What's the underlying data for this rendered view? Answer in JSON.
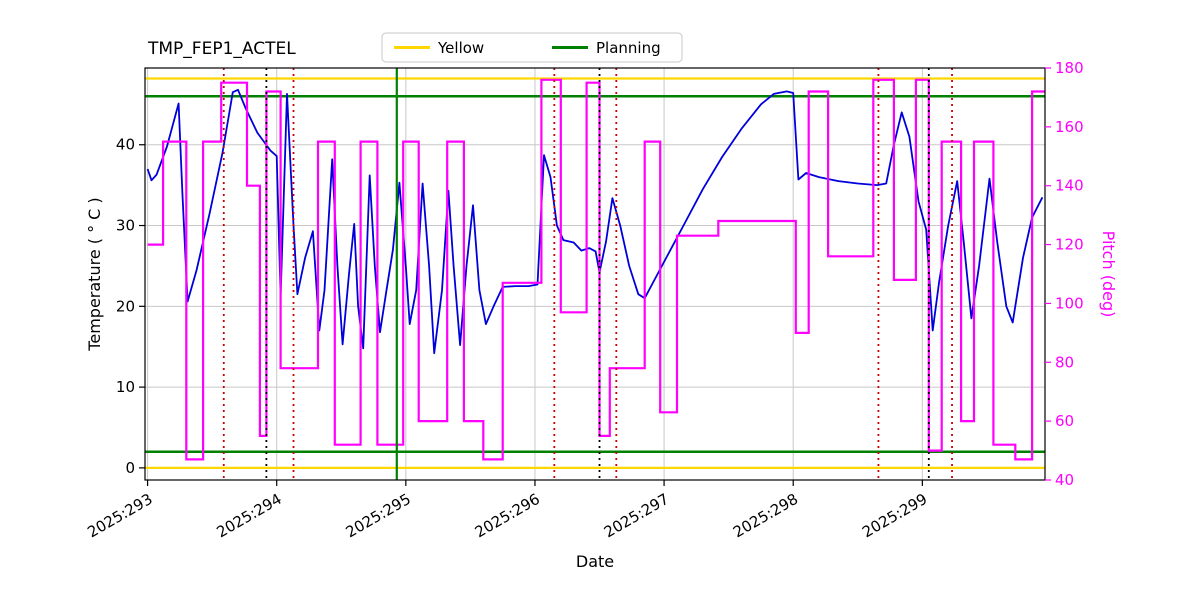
{
  "figure": {
    "title": "TMP_FEP1_ACTEL",
    "xlabel": "Date",
    "ylabel_left": "Temperature ( ° C )",
    "ylabel_right": "Pitch (deg)"
  },
  "legend": {
    "entries": [
      {
        "label": "Yellow",
        "color": "#ffd700"
      },
      {
        "label": "Planning",
        "color": "#008000"
      }
    ]
  },
  "chart_data": {
    "type": "line",
    "title": "TMP_FEP1_ACTEL",
    "xlabel": "Date",
    "ylabel_left": "Temperature ( ° C )",
    "ylabel_right": "Pitch (deg)",
    "xlim": [
      292.98,
      299.95
    ],
    "temp_ylim": [
      -1.5,
      49.5
    ],
    "pitch_ylim": [
      40,
      180
    ],
    "grid": true,
    "legend_position": "top-center",
    "x_ticks": {
      "values": [
        293,
        294,
        295,
        296,
        297,
        298,
        299
      ],
      "labels": [
        "2025:293",
        "2025:294",
        "2025:295",
        "2025:296",
        "2025:297",
        "2025:298",
        "2025:299"
      ]
    },
    "temp_ticks": [
      0,
      10,
      20,
      30,
      40
    ],
    "pitch_ticks": [
      40,
      60,
      80,
      100,
      120,
      140,
      160,
      180
    ],
    "style": {
      "grid_color": "#c8c8c8",
      "spine_color": "#000000",
      "background": "#ffffff"
    },
    "series": {
      "temperature": {
        "name": "Temperature",
        "axis": "left",
        "color": "#0000dd",
        "points": [
          [
            293.0,
            37.0
          ],
          [
            293.03,
            35.6
          ],
          [
            293.07,
            36.3
          ],
          [
            293.15,
            39.8
          ],
          [
            293.24,
            45.1
          ],
          [
            293.27,
            34.0
          ],
          [
            293.31,
            20.6
          ],
          [
            293.38,
            24.5
          ],
          [
            293.48,
            31.5
          ],
          [
            293.58,
            39.0
          ],
          [
            293.66,
            46.5
          ],
          [
            293.7,
            46.8
          ],
          [
            293.76,
            44.5
          ],
          [
            293.85,
            41.5
          ],
          [
            293.95,
            39.3
          ],
          [
            294.0,
            38.6
          ],
          [
            294.03,
            21.2
          ],
          [
            294.08,
            46.3
          ],
          [
            294.13,
            30.0
          ],
          [
            294.16,
            21.5
          ],
          [
            294.22,
            26.0
          ],
          [
            294.28,
            29.3
          ],
          [
            294.33,
            17.0
          ],
          [
            294.37,
            22.0
          ],
          [
            294.43,
            38.2
          ],
          [
            294.47,
            25.0
          ],
          [
            294.51,
            15.3
          ],
          [
            294.56,
            24.0
          ],
          [
            294.6,
            30.2
          ],
          [
            294.63,
            20.0
          ],
          [
            294.67,
            14.8
          ],
          [
            294.72,
            36.2
          ],
          [
            294.76,
            25.0
          ],
          [
            294.8,
            16.8
          ],
          [
            294.85,
            22.0
          ],
          [
            294.9,
            27.0
          ],
          [
            294.95,
            35.3
          ],
          [
            295.0,
            25.0
          ],
          [
            295.03,
            17.8
          ],
          [
            295.08,
            22.0
          ],
          [
            295.13,
            35.2
          ],
          [
            295.18,
            25.0
          ],
          [
            295.22,
            14.2
          ],
          [
            295.28,
            22.0
          ],
          [
            295.33,
            34.3
          ],
          [
            295.37,
            25.0
          ],
          [
            295.42,
            15.2
          ],
          [
            295.47,
            25.0
          ],
          [
            295.52,
            32.5
          ],
          [
            295.57,
            22.0
          ],
          [
            295.62,
            17.8
          ],
          [
            295.68,
            20.0
          ],
          [
            295.75,
            22.4
          ],
          [
            295.85,
            22.5
          ],
          [
            295.95,
            22.5
          ],
          [
            296.02,
            22.7
          ],
          [
            296.07,
            38.7
          ],
          [
            296.12,
            36.0
          ],
          [
            296.17,
            30.0
          ],
          [
            296.22,
            28.2
          ],
          [
            296.3,
            27.9
          ],
          [
            296.36,
            26.9
          ],
          [
            296.42,
            27.2
          ],
          [
            296.47,
            26.8
          ],
          [
            296.5,
            24.2
          ],
          [
            296.55,
            28.0
          ],
          [
            296.6,
            33.4
          ],
          [
            296.66,
            30.0
          ],
          [
            296.73,
            25.0
          ],
          [
            296.8,
            21.5
          ],
          [
            296.85,
            21.0
          ],
          [
            296.95,
            24.0
          ],
          [
            297.05,
            27.0
          ],
          [
            297.15,
            30.0
          ],
          [
            297.3,
            34.5
          ],
          [
            297.45,
            38.5
          ],
          [
            297.6,
            42.0
          ],
          [
            297.75,
            45.0
          ],
          [
            297.85,
            46.3
          ],
          [
            297.95,
            46.6
          ],
          [
            298.0,
            46.4
          ],
          [
            298.04,
            35.7
          ],
          [
            298.1,
            36.5
          ],
          [
            298.2,
            36.0
          ],
          [
            298.35,
            35.5
          ],
          [
            298.5,
            35.2
          ],
          [
            298.65,
            35.0
          ],
          [
            298.72,
            35.2
          ],
          [
            298.78,
            40.0
          ],
          [
            298.84,
            44.0
          ],
          [
            298.9,
            41.0
          ],
          [
            298.97,
            33.0
          ],
          [
            299.03,
            29.5
          ],
          [
            299.08,
            17.0
          ],
          [
            299.13,
            23.0
          ],
          [
            299.2,
            30.0
          ],
          [
            299.27,
            35.5
          ],
          [
            299.32,
            28.0
          ],
          [
            299.38,
            18.5
          ],
          [
            299.44,
            25.0
          ],
          [
            299.52,
            35.8
          ],
          [
            299.58,
            28.0
          ],
          [
            299.65,
            20.0
          ],
          [
            299.7,
            18.0
          ],
          [
            299.78,
            26.0
          ],
          [
            299.85,
            31.0
          ],
          [
            299.93,
            33.5
          ]
        ]
      },
      "pitch": {
        "name": "Pitch",
        "axis": "right",
        "color": "#ff00ff",
        "steps": [
          [
            293.0,
            120
          ],
          [
            293.12,
            155
          ],
          [
            293.3,
            47
          ],
          [
            293.43,
            155
          ],
          [
            293.57,
            175
          ],
          [
            293.77,
            140
          ],
          [
            293.87,
            55
          ],
          [
            293.92,
            172
          ],
          [
            294.03,
            78
          ],
          [
            294.32,
            155
          ],
          [
            294.45,
            52
          ],
          [
            294.65,
            155
          ],
          [
            294.78,
            52
          ],
          [
            294.98,
            155
          ],
          [
            295.1,
            60
          ],
          [
            295.32,
            155
          ],
          [
            295.45,
            60
          ],
          [
            295.6,
            47
          ],
          [
            295.75,
            107
          ],
          [
            296.05,
            176
          ],
          [
            296.2,
            97
          ],
          [
            296.4,
            175
          ],
          [
            296.5,
            55
          ],
          [
            296.58,
            78
          ],
          [
            296.85,
            155
          ],
          [
            296.97,
            63
          ],
          [
            297.1,
            123
          ],
          [
            297.42,
            128
          ],
          [
            298.02,
            90
          ],
          [
            298.12,
            172
          ],
          [
            298.27,
            116
          ],
          [
            298.62,
            176
          ],
          [
            298.78,
            108
          ],
          [
            298.95,
            176
          ],
          [
            299.05,
            50
          ],
          [
            299.15,
            155
          ],
          [
            299.3,
            60
          ],
          [
            299.4,
            155
          ],
          [
            299.55,
            52
          ],
          [
            299.72,
            47
          ],
          [
            299.85,
            172
          ]
        ]
      }
    },
    "limit_lines": {
      "yellow": {
        "label": "Yellow",
        "color": "#ffd700",
        "temp_values": [
          0,
          48.2
        ]
      },
      "planning": {
        "label": "Planning",
        "color": "#008000",
        "temp_values": [
          2,
          46
        ]
      }
    },
    "event_lines": {
      "red_dotted": {
        "color": "#cc0000",
        "style": "dotted",
        "x": [
          293.59,
          294.13,
          296.15,
          296.63,
          298.66,
          299.23
        ]
      },
      "black_dotted": {
        "color": "#000000",
        "style": "dotted",
        "x": [
          293.92,
          296.5,
          299.05
        ]
      },
      "green_solid": {
        "color": "#008000",
        "style": "solid",
        "x": [
          294.93
        ]
      }
    }
  }
}
